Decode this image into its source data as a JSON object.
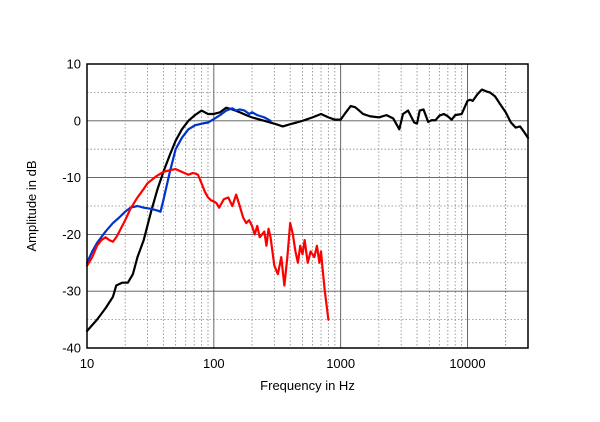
{
  "chart_data": {
    "type": "line",
    "title": "",
    "xlabel": "Frequency in Hz",
    "ylabel": "Amplitude in dB",
    "x_scale": "log",
    "xlim": [
      10,
      30000
    ],
    "ylim": [
      -40,
      10
    ],
    "x_ticks": [
      10,
      100,
      1000,
      10000
    ],
    "x_tick_labels": [
      "10",
      "100",
      "1000",
      "10000"
    ],
    "y_ticks": [
      10,
      0,
      -10,
      -20,
      -30,
      -40
    ],
    "y_tick_labels": [
      "10",
      "0",
      "-10",
      "-20",
      "-30",
      "-40"
    ],
    "grid": true,
    "legend": "none",
    "colors": {
      "background": "#ffffff",
      "axes": "#000000",
      "grid": "#888888"
    },
    "series": [
      {
        "color": "#000000",
        "x": [
          10,
          12,
          14,
          16,
          17,
          19,
          21,
          23,
          25,
          28,
          32,
          36,
          40,
          45,
          50,
          56,
          63,
          71,
          80,
          90,
          100,
          112,
          125,
          140,
          160,
          180,
          200,
          250,
          300,
          350,
          400,
          450,
          500,
          600,
          700,
          800,
          900,
          1000,
          1100,
          1200,
          1300,
          1400,
          1500,
          1700,
          2000,
          2300,
          2600,
          2900,
          3100,
          3400,
          3800,
          4000,
          4200,
          4500,
          4900,
          5200,
          5600,
          6000,
          6500,
          7000,
          7500,
          8000,
          9000,
          10000,
          10500,
          11000,
          12000,
          13000,
          14000,
          15000,
          16500,
          18000,
          20000,
          22000,
          24000,
          26000,
          28000,
          30000
        ],
        "y": [
          -37,
          -35,
          -33,
          -31,
          -29,
          -28.5,
          -28.5,
          -27,
          -24,
          -21,
          -16,
          -12,
          -9,
          -6,
          -3.5,
          -1.5,
          0,
          1,
          1.8,
          1.2,
          1.2,
          1.5,
          2.3,
          2,
          1.5,
          1,
          0.6,
          0,
          -0.5,
          -1,
          -0.6,
          -0.3,
          0,
          0.6,
          1.2,
          0.6,
          0.2,
          0.2,
          1.5,
          2.6,
          2.4,
          1.8,
          1.2,
          0.8,
          0.6,
          1,
          0.4,
          -1.5,
          1.2,
          1.8,
          -0.3,
          -0.5,
          1.8,
          2,
          -0.2,
          0.1,
          0.1,
          0.9,
          1.2,
          0.8,
          0.2,
          1,
          1.2,
          3.5,
          3.7,
          3.5,
          4.7,
          5.5,
          5.2,
          5,
          4.3,
          3,
          1.5,
          -0.3,
          -1.2,
          -1,
          -2,
          -3
        ]
      },
      {
        "color": "#0033cc",
        "x": [
          10,
          11,
          12,
          14,
          16,
          18,
          20,
          22,
          25,
          28,
          32,
          36,
          38,
          40,
          45,
          50,
          56,
          63,
          71,
          80,
          90,
          100,
          112,
          125,
          140,
          150,
          160,
          175,
          190,
          200,
          220,
          250,
          280
        ],
        "y": [
          -25,
          -23,
          -21.5,
          -19.5,
          -18,
          -17,
          -16,
          -15.3,
          -15,
          -15.3,
          -15.5,
          -15.8,
          -16,
          -14,
          -9,
          -5,
          -3,
          -1.5,
          -0.8,
          -0.5,
          -0.3,
          0.3,
          1,
          1.8,
          2.2,
          1.8,
          2,
          1.8,
          1.2,
          1.5,
          1,
          0.6,
          0
        ]
      },
      {
        "color": "#ff0000",
        "x": [
          10,
          11,
          12,
          13,
          14,
          15,
          16,
          17,
          18,
          20,
          22,
          25,
          28,
          30,
          32,
          35,
          40,
          45,
          50,
          56,
          63,
          68,
          72,
          75,
          80,
          85,
          90,
          95,
          100,
          105,
          110,
          120,
          130,
          140,
          150,
          160,
          170,
          180,
          190,
          200,
          210,
          220,
          230,
          240,
          250,
          260,
          270,
          280,
          300,
          320,
          340,
          360,
          380,
          400,
          420,
          440,
          460,
          480,
          500,
          520,
          550,
          580,
          620,
          650,
          680,
          700,
          720,
          750,
          780,
          800
        ],
        "y": [
          -25.5,
          -24,
          -22,
          -21,
          -20.5,
          -21,
          -21.3,
          -20.5,
          -19.5,
          -17.5,
          -15.5,
          -13.5,
          -12,
          -11,
          -10.5,
          -9.8,
          -9,
          -8.7,
          -8.5,
          -9,
          -9.5,
          -9.2,
          -9.3,
          -9.5,
          -11,
          -12.5,
          -13.5,
          -14,
          -14.2,
          -14.5,
          -15.3,
          -13.8,
          -13.5,
          -15,
          -13,
          -15,
          -17,
          -18,
          -17.5,
          -18.5,
          -20,
          -18.5,
          -20.5,
          -20,
          -19.5,
          -22,
          -19,
          -20.5,
          -25.5,
          -27,
          -24,
          -29,
          -24,
          -18,
          -20,
          -23,
          -25,
          -22,
          -23.5,
          -21,
          -25,
          -23,
          -24,
          -22,
          -25,
          -23,
          -26,
          -30,
          -33,
          -35
        ]
      }
    ]
  }
}
